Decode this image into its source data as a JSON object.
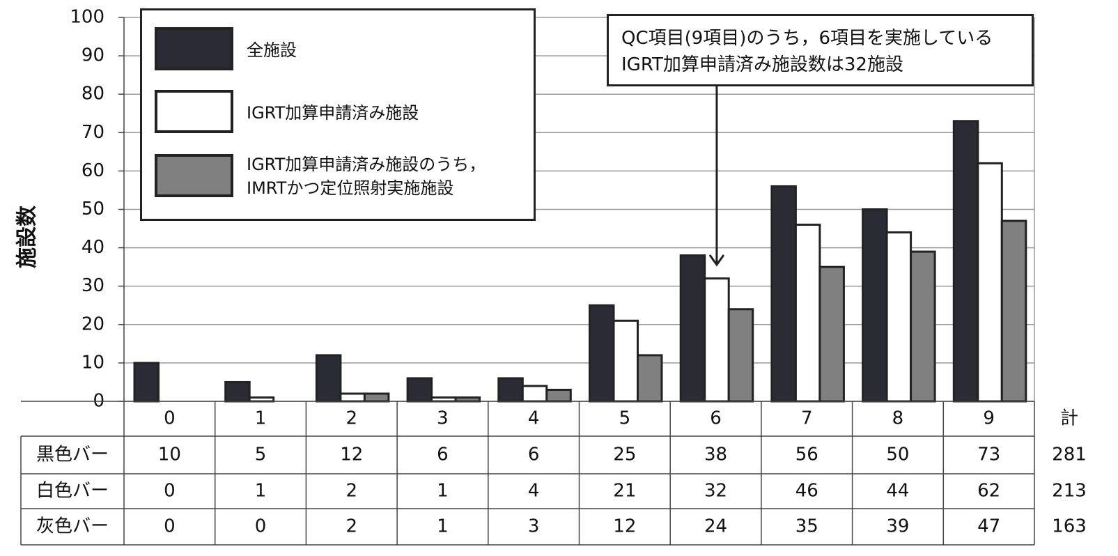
{
  "chart_data": {
    "type": "bar",
    "ylabel": "施設数",
    "categories": [
      "0",
      "1",
      "2",
      "3",
      "4",
      "5",
      "6",
      "7",
      "8",
      "9"
    ],
    "series": [
      {
        "name": "全施設",
        "color": "#2b2b35",
        "values": [
          10,
          5,
          12,
          6,
          6,
          25,
          38,
          56,
          50,
          73
        ]
      },
      {
        "name": "IGRT加算申請済み施設",
        "color": "#ffffff",
        "values": [
          0,
          1,
          2,
          1,
          4,
          21,
          32,
          46,
          44,
          62
        ]
      },
      {
        "name": "IGRT加算申請済み施設のうち，\nIMRTかつ定位照射実施施設",
        "color": "#808080",
        "values": [
          0,
          0,
          2,
          1,
          3,
          12,
          24,
          35,
          39,
          47
        ]
      }
    ],
    "ylim": [
      0,
      100
    ],
    "yticks": [
      0,
      10,
      20,
      30,
      40,
      50,
      60,
      70,
      80,
      90,
      100
    ],
    "grid": true,
    "annotation": "QC項目(9項目)のうち，6項目を実施している\nIGRT加算申請済み施設数は32施設",
    "table": {
      "row_labels": [
        "黒色バー",
        "白色バー",
        "灰色バー"
      ],
      "total_header": "計",
      "totals": [
        281,
        213,
        163
      ]
    }
  }
}
